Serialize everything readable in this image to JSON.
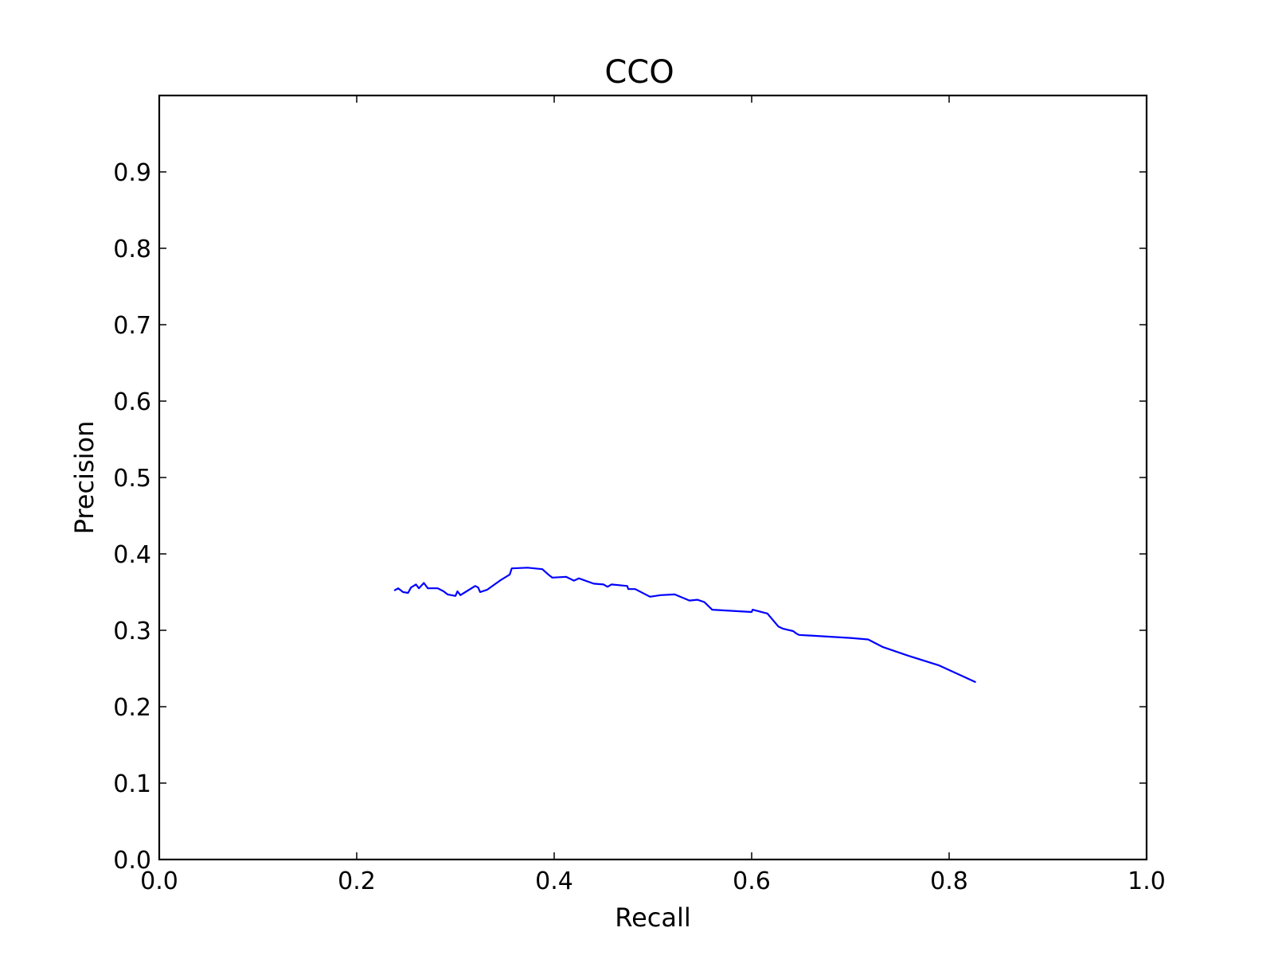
{
  "chart_data": {
    "type": "line",
    "title": "CCO",
    "xlabel": "Recall",
    "ylabel": "Precision",
    "xlim": [
      0.0,
      1.0
    ],
    "ylim": [
      0.0,
      1.0
    ],
    "xticks": [
      "0.0",
      "0.2",
      "0.4",
      "0.6",
      "0.8",
      "1.0"
    ],
    "yticks": [
      "0.0",
      "0.1",
      "0.2",
      "0.3",
      "0.4",
      "0.5",
      "0.6",
      "0.7",
      "0.8",
      "0.9"
    ],
    "grid": false,
    "legend": "none",
    "series": [
      {
        "color": "#0000ff",
        "x": [
          0.238,
          0.242,
          0.247,
          0.252,
          0.255,
          0.26,
          0.263,
          0.268,
          0.272,
          0.282,
          0.288,
          0.292,
          0.3,
          0.302,
          0.305,
          0.31,
          0.32,
          0.323,
          0.325,
          0.332,
          0.345,
          0.355,
          0.357,
          0.373,
          0.388,
          0.395,
          0.398,
          0.412,
          0.42,
          0.425,
          0.44,
          0.45,
          0.454,
          0.458,
          0.474,
          0.475,
          0.482,
          0.497,
          0.508,
          0.522,
          0.537,
          0.545,
          0.552,
          0.56,
          0.6,
          0.601,
          0.616,
          0.627,
          0.632,
          0.642,
          0.645,
          0.648,
          0.7,
          0.718,
          0.733,
          0.758,
          0.79,
          0.827
        ],
        "y": [
          0.352,
          0.355,
          0.35,
          0.349,
          0.356,
          0.36,
          0.355,
          0.362,
          0.355,
          0.355,
          0.351,
          0.347,
          0.345,
          0.351,
          0.346,
          0.35,
          0.358,
          0.356,
          0.35,
          0.353,
          0.365,
          0.373,
          0.381,
          0.382,
          0.38,
          0.372,
          0.369,
          0.37,
          0.365,
          0.368,
          0.361,
          0.36,
          0.357,
          0.36,
          0.358,
          0.354,
          0.354,
          0.344,
          0.346,
          0.347,
          0.339,
          0.34,
          0.337,
          0.327,
          0.324,
          0.327,
          0.322,
          0.305,
          0.302,
          0.299,
          0.296,
          0.294,
          0.29,
          0.288,
          0.278,
          0.267,
          0.254,
          0.232
        ]
      }
    ]
  }
}
